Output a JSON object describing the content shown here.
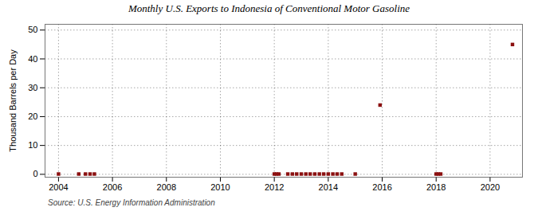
{
  "chart_data": {
    "type": "scatter",
    "title": "Monthly U.S. Exports to Indonesia of Conventional Motor Gasoline",
    "ylabel": "Thousand Barrels per Day",
    "source": "Source: U.S. Energy Information Administration",
    "x": [
      2004.0,
      2004.75,
      2005.0,
      2005.17,
      2005.33,
      2012.0,
      2012.08,
      2012.17,
      2012.5,
      2012.67,
      2012.83,
      2013.0,
      2013.17,
      2013.33,
      2013.5,
      2013.67,
      2013.83,
      2014.0,
      2014.17,
      2014.33,
      2014.5,
      2015.0,
      2015.92,
      2018.0,
      2018.08,
      2018.17,
      2020.83
    ],
    "values": [
      0.1,
      0.1,
      0.1,
      0.1,
      0.1,
      0.1,
      0.1,
      0.1,
      0.1,
      0.1,
      0.1,
      0.1,
      0.1,
      0.1,
      0.1,
      0.1,
      0.1,
      0.1,
      0.1,
      0.1,
      0.1,
      0.1,
      24.0,
      0.1,
      0.1,
      0.1,
      45.0
    ],
    "color": "#8b1010",
    "marker": "square",
    "xlim": [
      2003.5,
      2021.2
    ],
    "xticks": [
      2004,
      2006,
      2008,
      2010,
      2012,
      2014,
      2016,
      2018,
      2020
    ],
    "ylim": [
      -1,
      52
    ],
    "yticks": [
      0,
      10,
      20,
      30,
      40,
      50
    ],
    "grid": true
  }
}
